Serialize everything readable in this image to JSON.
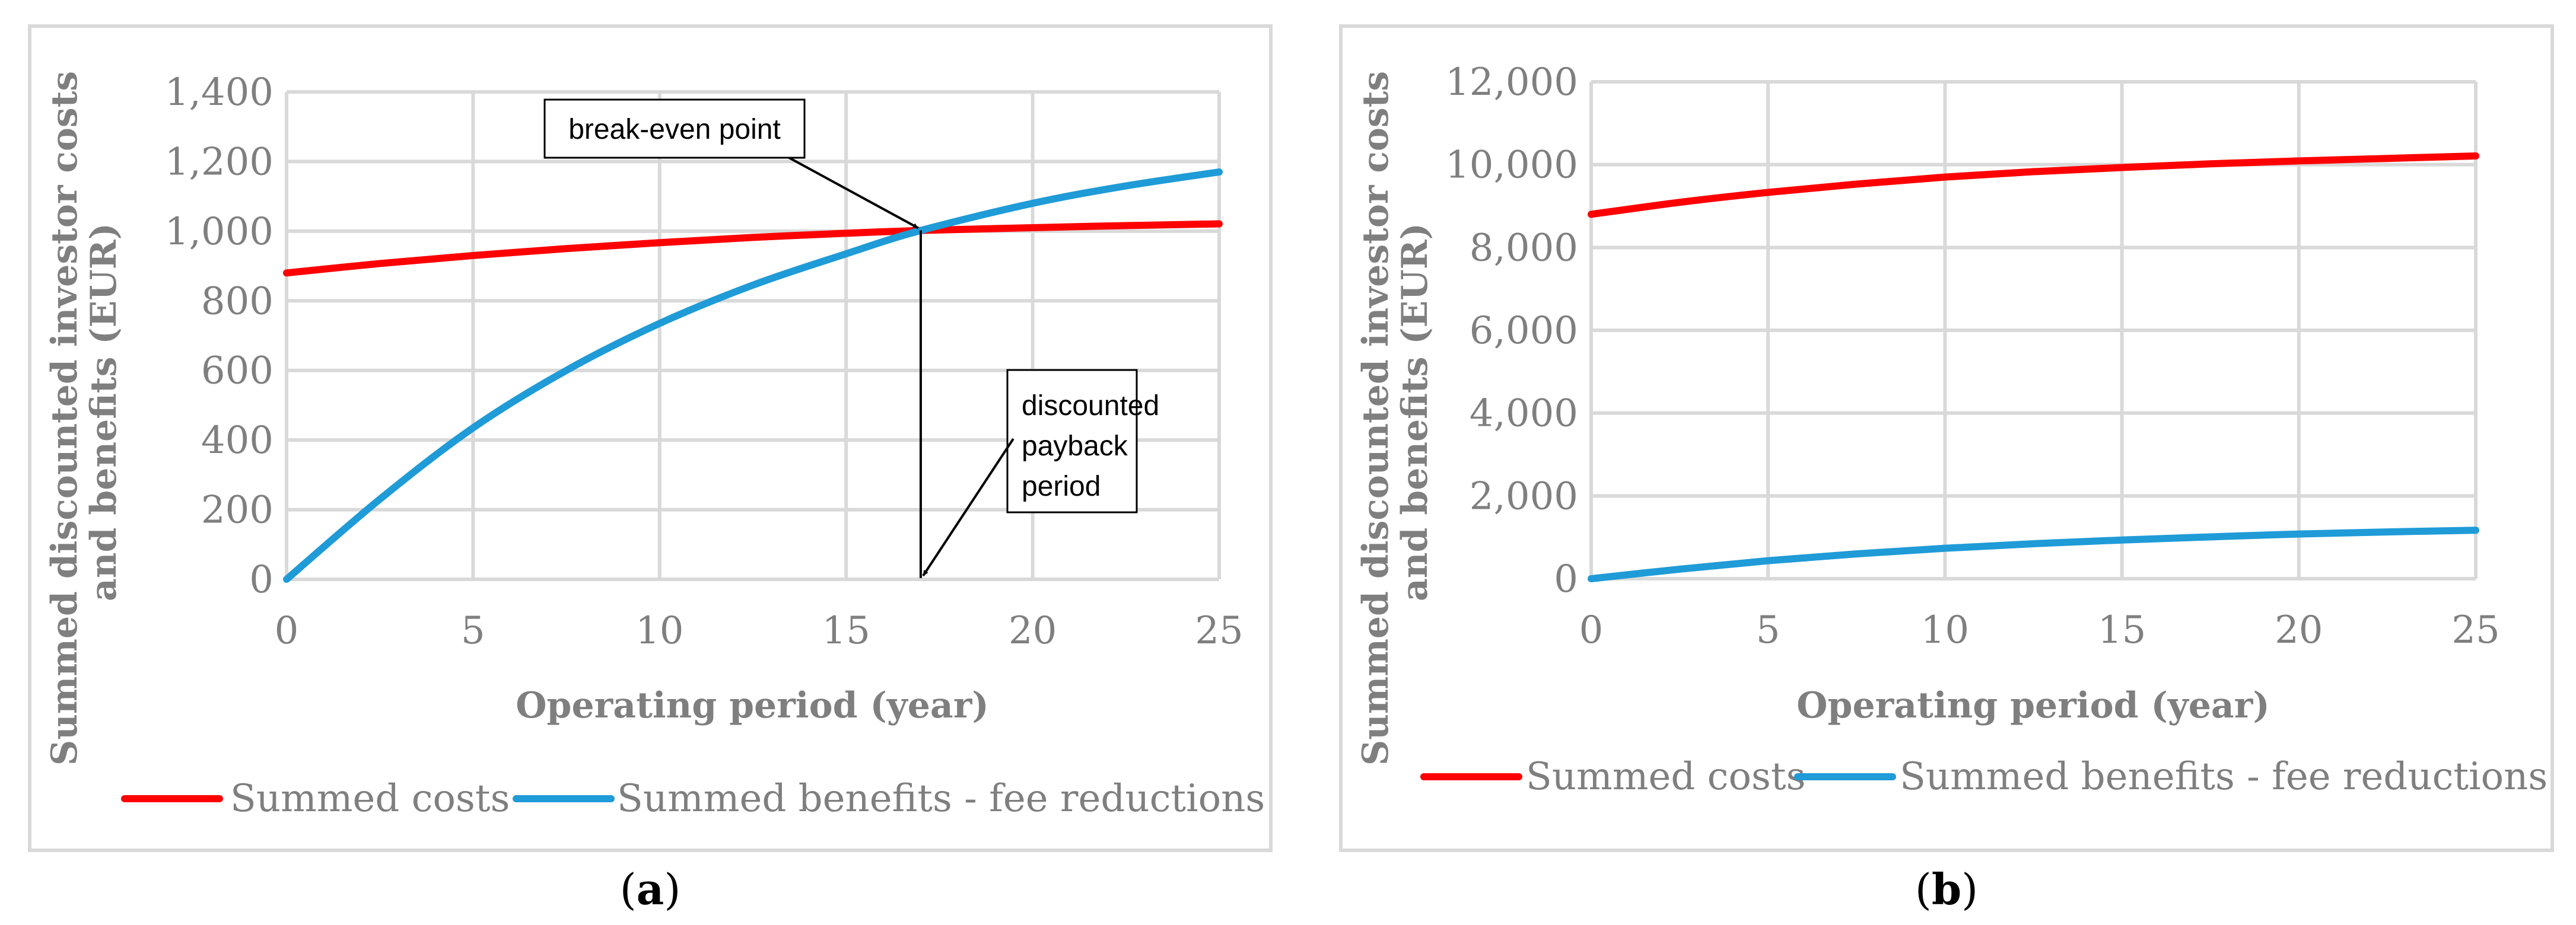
{
  "figure_labels": [
    "a",
    "b"
  ],
  "colors": {
    "costs": "#ff0000",
    "benefits": "#1f9bd7",
    "grid": "#d9d9d9",
    "text": "#7f7f7f"
  },
  "chart_data": [
    {
      "type": "line",
      "panel": "a",
      "ylabel_lines": [
        "Summed discounted investor costs",
        "and benefits (EUR)"
      ],
      "xlabel": "Operating period (year)",
      "xlim": [
        0,
        25
      ],
      "ylim": [
        0,
        1400
      ],
      "x_ticks": [
        0,
        5,
        10,
        15,
        20,
        25
      ],
      "y_ticks": [
        0,
        200,
        400,
        600,
        800,
        1000,
        1200,
        1400
      ],
      "y_tick_labels": [
        "0",
        "200",
        "400",
        "600",
        "800",
        "1,000",
        "1,200",
        "1,400"
      ],
      "x": [
        0,
        2.5,
        5,
        7.5,
        10,
        12.5,
        15,
        17,
        20,
        22.5,
        25
      ],
      "series": [
        {
          "name": "Summed costs",
          "color": "#ff0000",
          "values": [
            880,
            907,
            930,
            950,
            967,
            982,
            994,
            1002,
            1010,
            1016,
            1021
          ]
        },
        {
          "name": "Summed benefits - fee reductions",
          "color": "#1f9bd7",
          "values": [
            0,
            230,
            435,
            600,
            735,
            845,
            935,
            1002,
            1080,
            1130,
            1170
          ]
        }
      ],
      "legend_position": "bottom",
      "annotations": [
        {
          "text_lines": [
            "break-even point"
          ],
          "target": [
            17,
            1002
          ]
        },
        {
          "text_lines": [
            "discounted",
            "payback",
            "period"
          ],
          "target": [
            17,
            0
          ],
          "drop_line_from": [
            17,
            1002
          ]
        }
      ]
    },
    {
      "type": "line",
      "panel": "b",
      "ylabel_lines": [
        "Summed discounted investor costs",
        "and benefits (EUR)"
      ],
      "xlabel": "Operating period (year)",
      "xlim": [
        0,
        25
      ],
      "ylim": [
        0,
        12000
      ],
      "x_ticks": [
        0,
        5,
        10,
        15,
        20,
        25
      ],
      "y_ticks": [
        0,
        2000,
        4000,
        6000,
        8000,
        10000,
        12000
      ],
      "y_tick_labels": [
        "0",
        "2,000",
        "4,000",
        "6,000",
        "8,000",
        "10,000",
        "12,000"
      ],
      "x": [
        0,
        2.5,
        5,
        7.5,
        10,
        12.5,
        15,
        17.5,
        20,
        22.5,
        25
      ],
      "series": [
        {
          "name": "Summed costs",
          "color": "#ff0000",
          "values": [
            8800,
            9090,
            9330,
            9530,
            9700,
            9830,
            9930,
            10020,
            10090,
            10150,
            10210
          ]
        },
        {
          "name": "Summed benefits - fee reductions",
          "color": "#1f9bd7",
          "values": [
            0,
            230,
            435,
            600,
            735,
            845,
            935,
            1010,
            1080,
            1130,
            1170
          ]
        }
      ],
      "legend_position": "bottom"
    }
  ]
}
